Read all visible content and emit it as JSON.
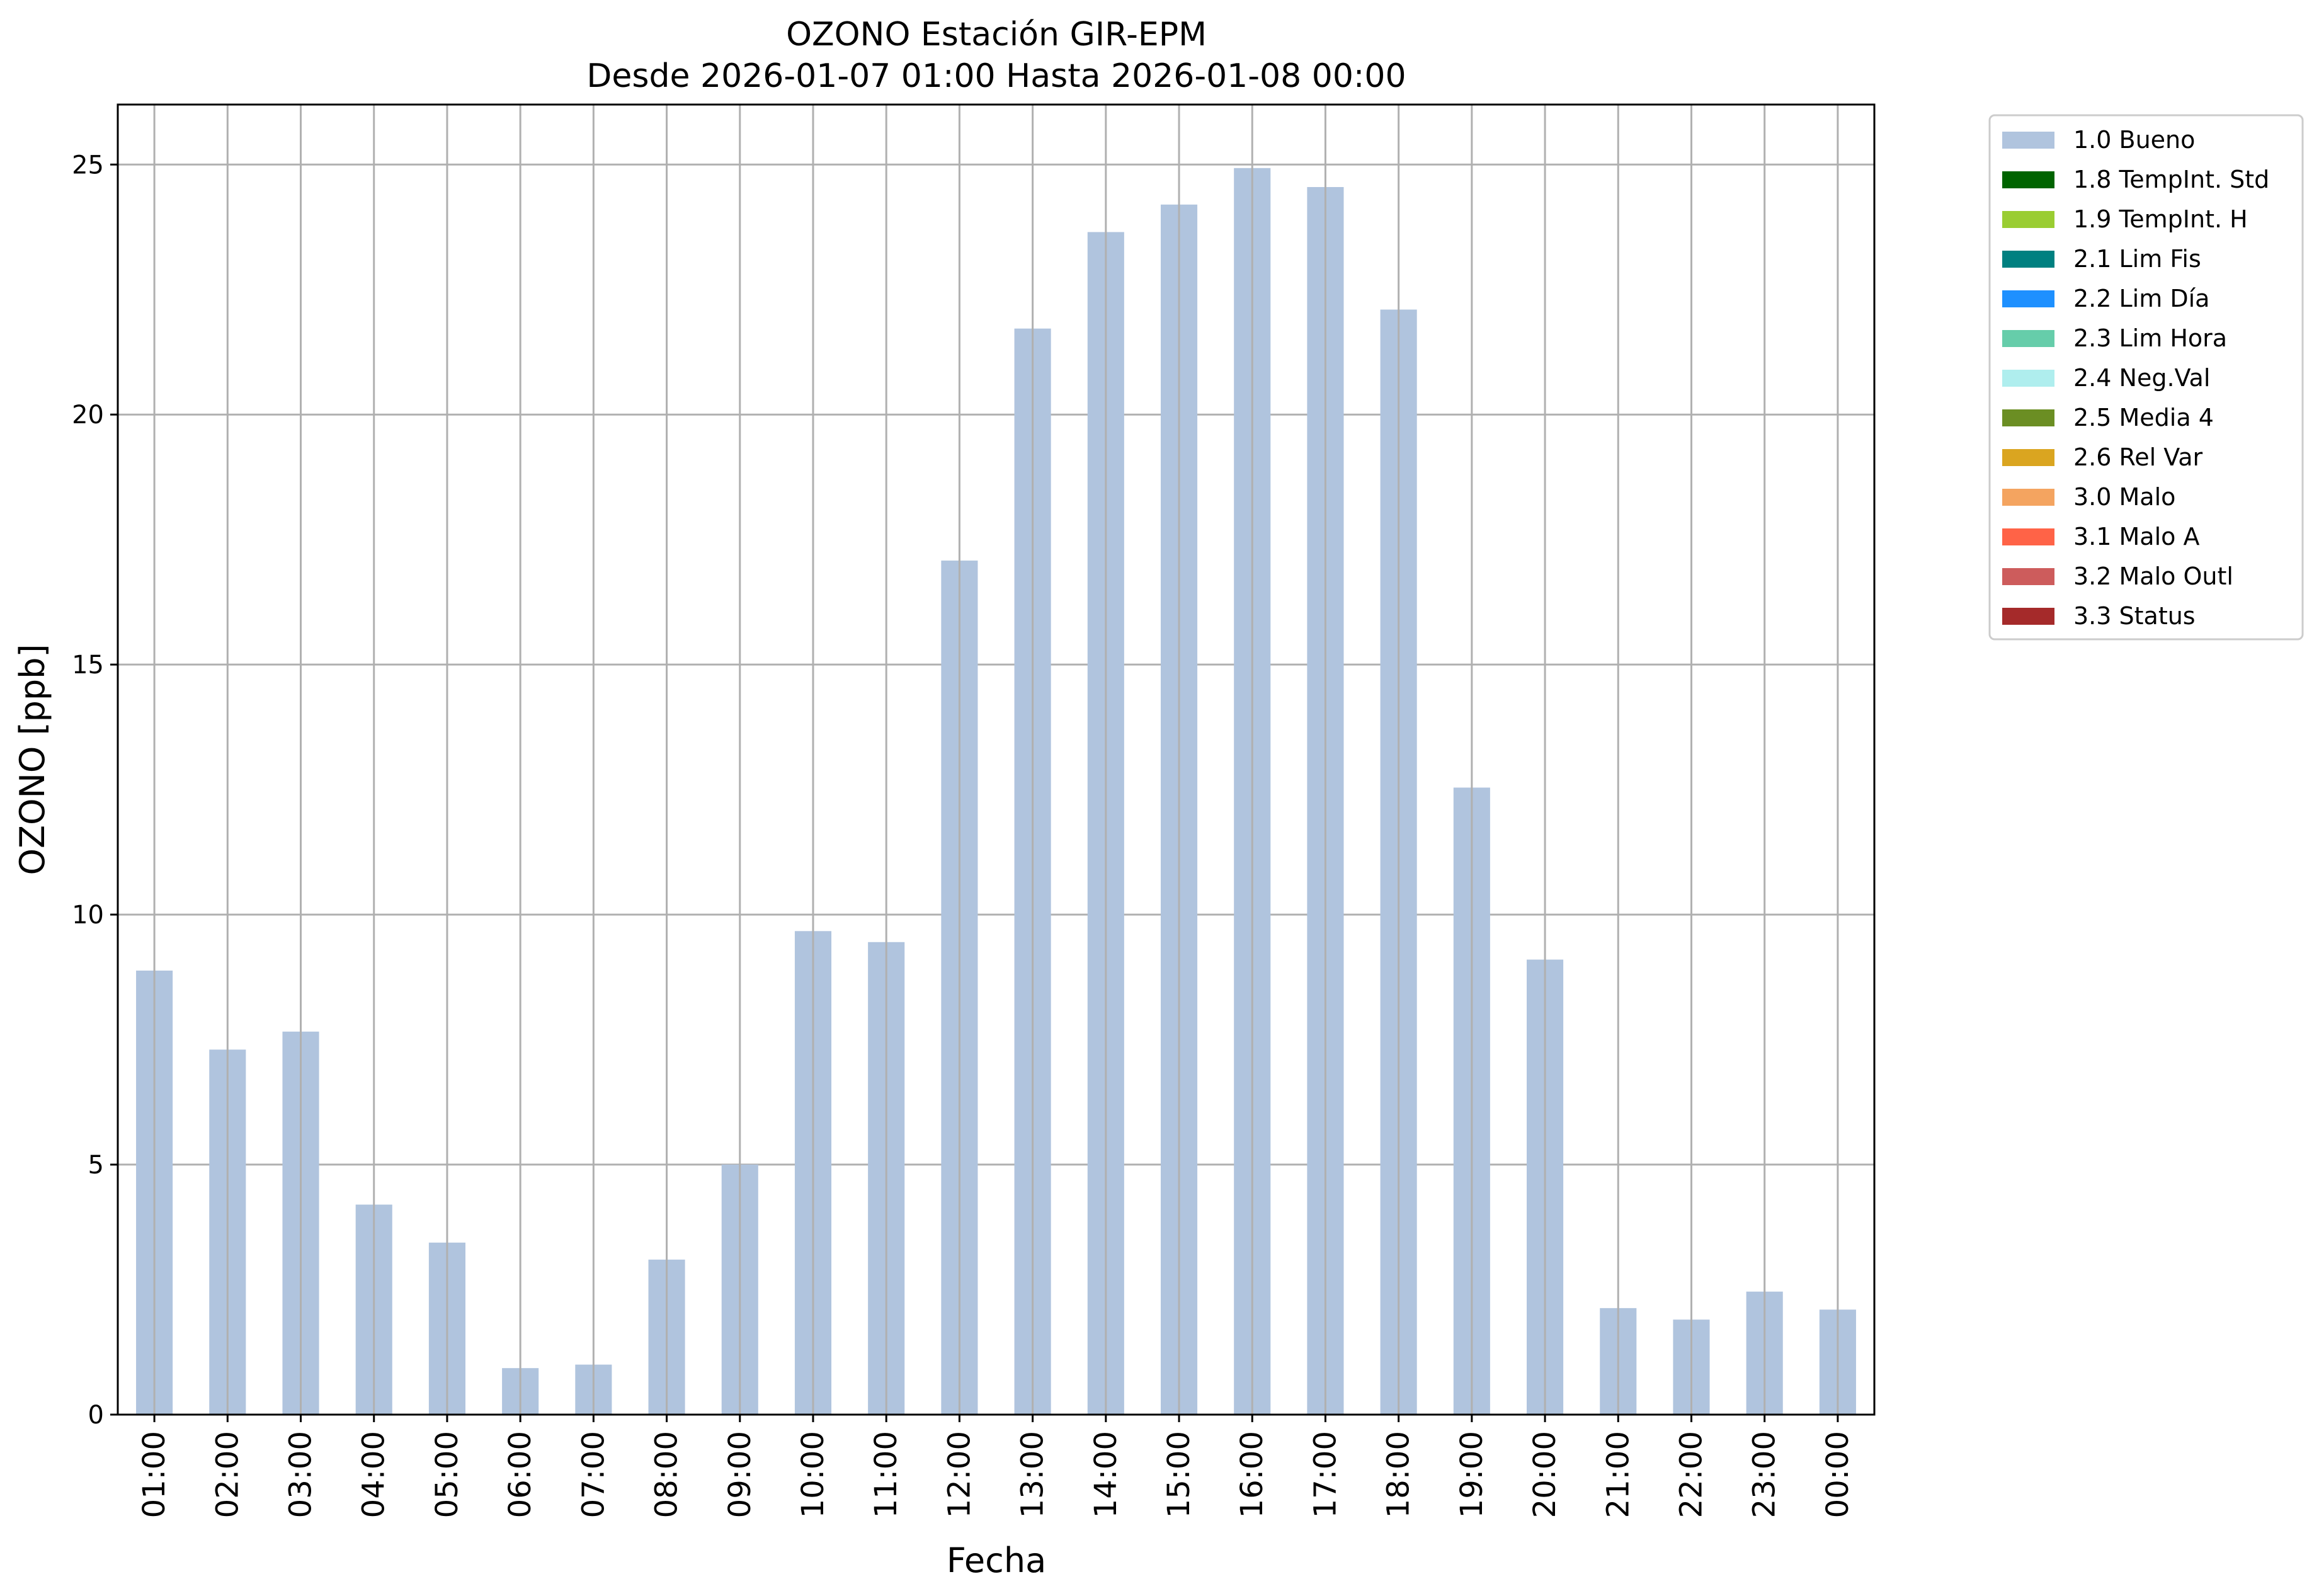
{
  "chart_data": {
    "type": "bar",
    "title": "OZONO Estación GIR-EPM",
    "subtitle": "Desde 2026-01-07 01:00 Hasta 2026-01-08 00:00",
    "xlabel": "Fecha",
    "ylabel": "OZONO [ppb]",
    "ylim": [
      0,
      26.2
    ],
    "yticks": [
      "0",
      "5",
      "10",
      "15",
      "20",
      "25"
    ],
    "grid": true,
    "legend_position": "outside-top-right",
    "categories": [
      "01:00",
      "02:00",
      "03:00",
      "04:00",
      "05:00",
      "06:00",
      "07:00",
      "08:00",
      "09:00",
      "10:00",
      "11:00",
      "12:00",
      "13:00",
      "14:00",
      "15:00",
      "16:00",
      "17:00",
      "18:00",
      "19:00",
      "20:00",
      "21:00",
      "22:00",
      "23:00",
      "00:00"
    ],
    "series": [
      {
        "name": "1.0 Bueno",
        "color": "#b0c4de",
        "values": [
          8.88,
          7.3,
          7.66,
          4.2,
          3.44,
          0.93,
          1.0,
          3.1,
          5.0,
          9.67,
          9.45,
          17.08,
          21.72,
          23.65,
          24.2,
          24.93,
          24.55,
          22.1,
          12.54,
          9.1,
          2.13,
          1.9,
          2.46,
          2.1
        ]
      }
    ],
    "legend": [
      {
        "label": "1.0 Bueno",
        "color": "#b0c4de"
      },
      {
        "label": "1.8 TempInt. Std",
        "color": "#006400"
      },
      {
        "label": "1.9 TempInt. H",
        "color": "#9acd32"
      },
      {
        "label": "2.1 Lim Fis",
        "color": "#008080"
      },
      {
        "label": "2.2 Lim Día",
        "color": "#1e90ff"
      },
      {
        "label": "2.3 Lim Hora",
        "color": "#66cdaa"
      },
      {
        "label": "2.4 Neg.Val",
        "color": "#afeeee"
      },
      {
        "label": "2.5 Media 4",
        "color": "#6b8e23"
      },
      {
        "label": "2.6 Rel Var",
        "color": "#daa520"
      },
      {
        "label": "3.0 Malo",
        "color": "#f4a460"
      },
      {
        "label": "3.1 Malo A",
        "color": "#ff6347"
      },
      {
        "label": "3.2 Malo Outl",
        "color": "#cd5c5c"
      },
      {
        "label": "3.3 Status",
        "color": "#a52a2a"
      }
    ]
  }
}
